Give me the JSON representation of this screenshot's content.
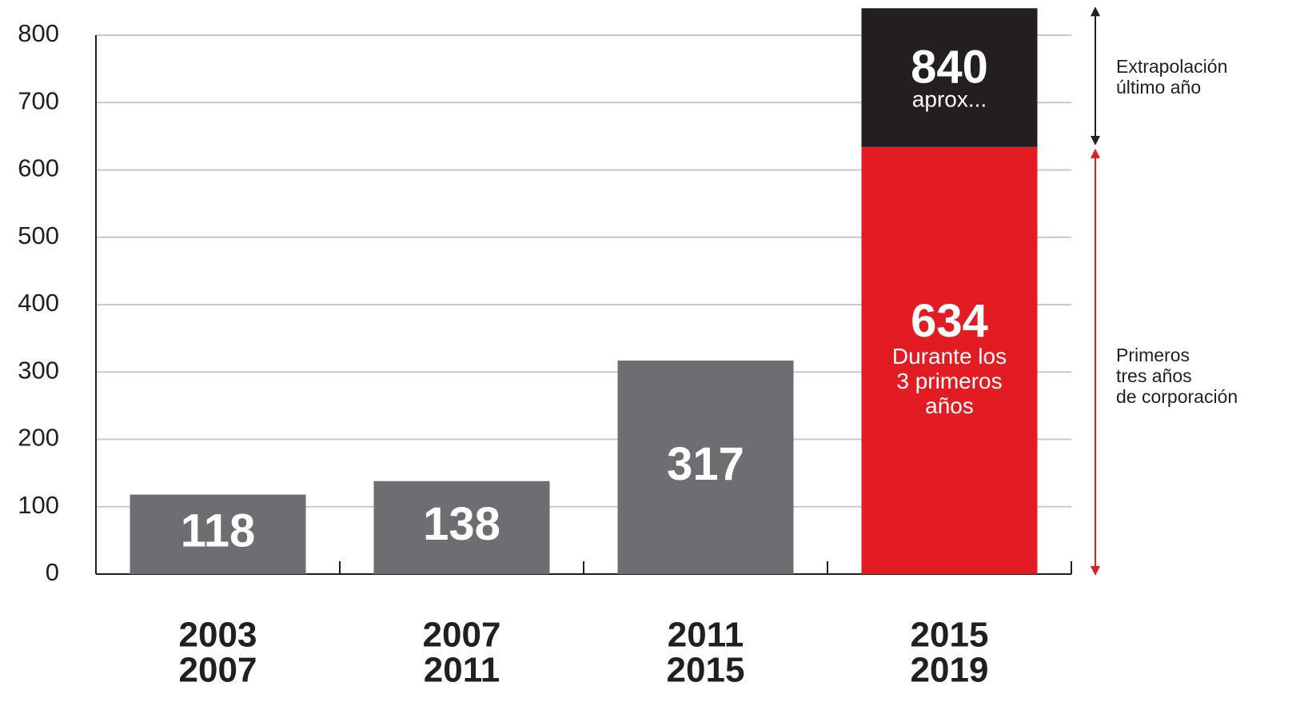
{
  "chart_data": {
    "type": "stacked_bar",
    "categories": [
      [
        "2003",
        "2007"
      ],
      [
        "2007",
        "2011"
      ],
      [
        "2011",
        "2015"
      ],
      [
        "2015",
        "2019"
      ]
    ],
    "series": [
      {
        "colors": [
          "#6d6e71",
          "#6d6e71",
          "#6d6e71",
          "#e31c23"
        ],
        "values": [
          118,
          138,
          317,
          634
        ]
      },
      {
        "color": "#231f20",
        "values": [
          null,
          null,
          null,
          206
        ]
      }
    ],
    "total": 840,
    "total_note": "aprox...",
    "base_note": [
      "Durante los",
      "3 primeros",
      "años"
    ],
    "side_notes": [
      {
        "lines": [
          "Extrapolación",
          "último año"
        ],
        "color": "#231f20"
      },
      {
        "lines": [
          "Primeros",
          "tres años",
          "de corporación"
        ],
        "color": "#e31c23"
      }
    ],
    "ylim": [
      0,
      800
    ],
    "yticks": [
      0,
      100,
      200,
      300,
      400,
      500,
      600,
      700,
      800
    ],
    "grid": true
  }
}
